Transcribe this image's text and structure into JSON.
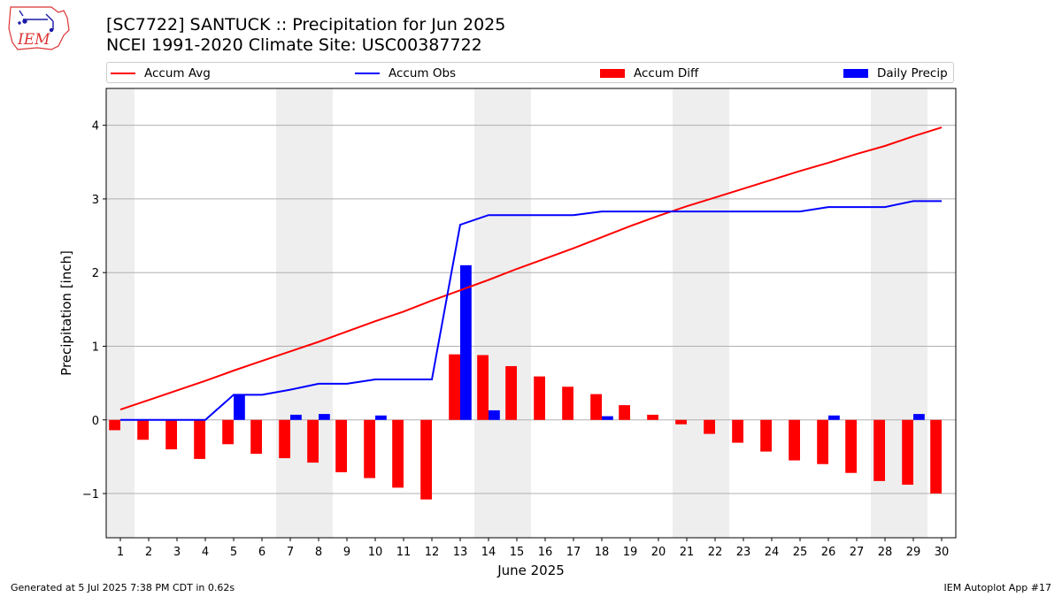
{
  "header": {
    "logo_text": "IEM",
    "title_line1": "[SC7722] SANTUCK :: Precipitation for Jun 2025",
    "title_line2": "NCEI 1991-2020 Climate Site: USC00387722"
  },
  "legend": {
    "items": [
      {
        "label": "Accum Avg",
        "kind": "line",
        "color": "#ff0000"
      },
      {
        "label": "Accum Obs",
        "kind": "line",
        "color": "#0000ff"
      },
      {
        "label": "Accum Diff",
        "kind": "bar",
        "color": "#ff0000"
      },
      {
        "label": "Daily Precip",
        "kind": "bar",
        "color": "#0000ff"
      }
    ]
  },
  "footer": {
    "left": "Generated at 5 Jul 2025 7:38 PM CDT in 0.62s",
    "right": "IEM Autoplot App #17"
  },
  "chart_data": {
    "type": "bar",
    "xlabel": "June 2025",
    "ylabel": "Precipitation [inch]",
    "x": [
      1,
      2,
      3,
      4,
      5,
      6,
      7,
      8,
      9,
      10,
      11,
      12,
      13,
      14,
      15,
      16,
      17,
      18,
      19,
      20,
      21,
      22,
      23,
      24,
      25,
      26,
      27,
      28,
      29,
      30
    ],
    "xlim": [
      0.5,
      30.5
    ],
    "ylim": [
      -1.6,
      4.5
    ],
    "yticks": [
      -1,
      0,
      1,
      2,
      3,
      4
    ],
    "ytick_labels": [
      "−1",
      "0",
      "1",
      "2",
      "3",
      "4"
    ],
    "grid": "horizontal",
    "weekend_shading": [
      [
        0.5,
        1.5
      ],
      [
        6.5,
        8.5
      ],
      [
        13.5,
        15.5
      ],
      [
        20.5,
        22.5
      ],
      [
        27.5,
        29.5
      ]
    ],
    "series": [
      {
        "name": "Accum Avg",
        "kind": "line",
        "color": "#ff0000",
        "values": [
          0.14,
          0.27,
          0.4,
          0.53,
          0.67,
          0.8,
          0.93,
          1.06,
          1.2,
          1.34,
          1.47,
          1.62,
          1.76,
          1.9,
          2.05,
          2.19,
          2.33,
          2.48,
          2.63,
          2.77,
          2.9,
          3.02,
          3.14,
          3.26,
          3.38,
          3.49,
          3.61,
          3.72,
          3.85,
          3.97
        ]
      },
      {
        "name": "Accum Obs",
        "kind": "line",
        "color": "#0000ff",
        "values": [
          0.0,
          0.0,
          0.0,
          0.0,
          0.34,
          0.34,
          0.41,
          0.49,
          0.49,
          0.55,
          0.55,
          0.55,
          2.65,
          2.78,
          2.78,
          2.78,
          2.78,
          2.83,
          2.83,
          2.83,
          2.83,
          2.83,
          2.83,
          2.83,
          2.83,
          2.89,
          2.89,
          2.89,
          2.97,
          2.97
        ]
      },
      {
        "name": "Accum Diff",
        "kind": "bar",
        "color": "#ff0000",
        "values": [
          -0.14,
          -0.27,
          -0.4,
          -0.53,
          -0.33,
          -0.46,
          -0.52,
          -0.58,
          -0.71,
          -0.79,
          -0.92,
          -1.08,
          0.89,
          0.88,
          0.73,
          0.59,
          0.45,
          0.35,
          0.2,
          0.07,
          -0.06,
          -0.19,
          -0.31,
          -0.43,
          -0.55,
          -0.6,
          -0.72,
          -0.83,
          -0.88,
          -1.0
        ]
      },
      {
        "name": "Daily Precip",
        "kind": "bar",
        "color": "#0000ff",
        "values": [
          0,
          0,
          0,
          0,
          0.34,
          0,
          0.07,
          0.08,
          0,
          0.06,
          0,
          0,
          2.1,
          0.13,
          0,
          0,
          0,
          0.05,
          0,
          0,
          0,
          0,
          0,
          0,
          0,
          0.06,
          0,
          0,
          0.08,
          0
        ]
      }
    ]
  }
}
